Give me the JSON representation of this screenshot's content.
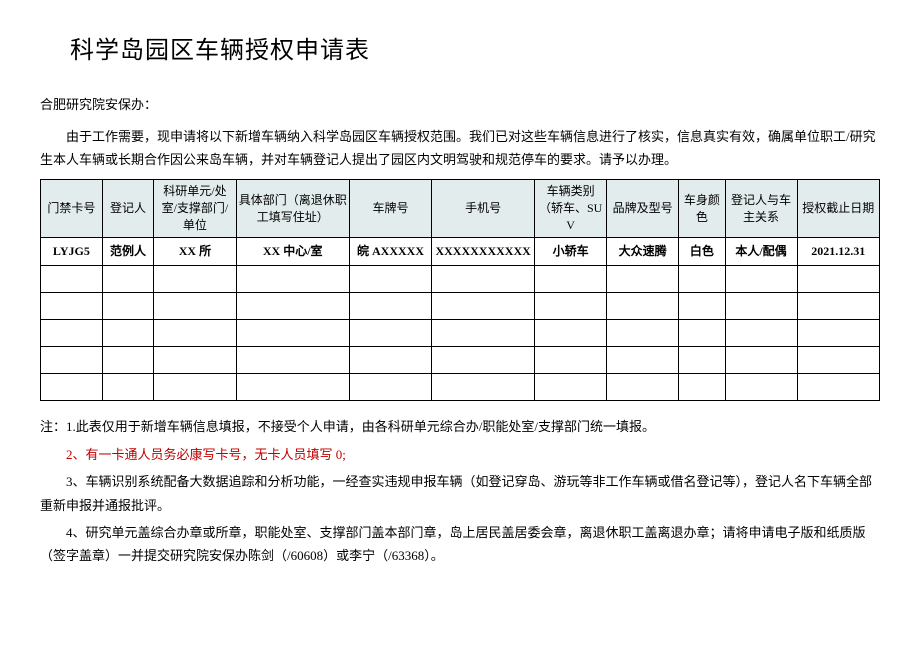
{
  "title": "科学岛园区车辆授权申请表",
  "addressee": "合肥研究院安保办：",
  "intro": "由于工作需要，现申请将以下新增车辆纳入科学岛园区车辆授权范围。我们已对这些车辆信息进行了核实，信息真实有效，确属单位职工/研究生本人车辆或长期合作因公来岛车辆，并对车辆登记人提出了园区内文明驾驶和规范停车的要求。请予以办理。",
  "table": {
    "headers": [
      "门禁卡号",
      "登记人",
      "科研单元/处室/支撑部门/单位",
      "具体部门（离退休职工填写住址）",
      "车牌号",
      "手机号",
      "车辆类别（轿车、SUV",
      "品牌及型号",
      "车身颜色",
      "登记人与车主关系",
      "授权截止日期"
    ],
    "widths": [
      "60",
      "50",
      "80",
      "110",
      "80",
      "100",
      "70",
      "70",
      "45",
      "70",
      "80"
    ],
    "rows": [
      [
        "LYJG5",
        "范例人",
        "XX 所",
        "XX 中心/室",
        "皖 AXXXXX",
        "XXXXXXXXXXX",
        "小轿车",
        "大众速腾",
        "白色",
        "本人/配偶",
        "2021.12.31"
      ],
      [
        "",
        "",
        "",
        "",
        "",
        "",
        "",
        "",
        "",
        "",
        ""
      ],
      [
        "",
        "",
        "",
        "",
        "",
        "",
        "",
        "",
        "",
        "",
        ""
      ],
      [
        "",
        "",
        "",
        "",
        "",
        "",
        "",
        "",
        "",
        "",
        ""
      ],
      [
        "",
        "",
        "",
        "",
        "",
        "",
        "",
        "",
        "",
        "",
        ""
      ],
      [
        "",
        "",
        "",
        "",
        "",
        "",
        "",
        "",
        "",
        "",
        ""
      ]
    ]
  },
  "notes": {
    "n1": "注：1.此表仅用于新增车辆信息填报，不接受个人申请，由各科研单元综合办/职能处室/支撑部门统一填报。",
    "n2": "2、有一卡通人员务必康写卡号，无卡人员填写 0;",
    "n3": "3、车辆识别系统配备大数据追踪和分析功能，一经查实违规申报车辆（如登记穿岛、游玩等非工作车辆或借名登记等），登记人名下车辆全部重新申报并通报批评。",
    "n4": "4、研究单元盖综合办章或所章，职能处室、支撑部门盖本部门章，岛上居民盖居委会章，离退休职工盖离退办章；请将申请电子版和纸质版（签字盖章）一并提交研究院安保办陈剑（/60608）或李宁（/63368）。"
  }
}
